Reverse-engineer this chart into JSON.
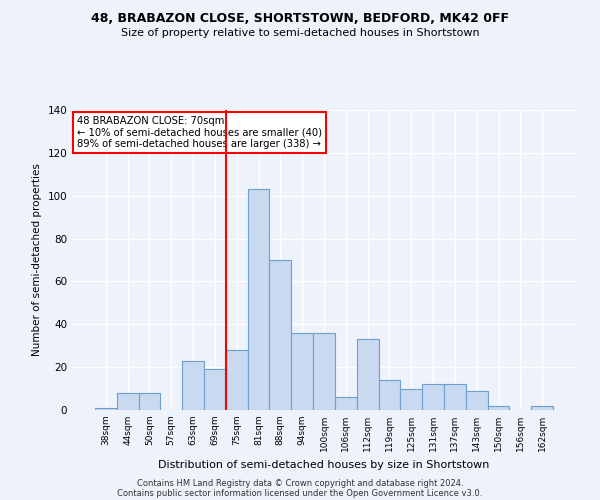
{
  "title": "48, BRABAZON CLOSE, SHORTSTOWN, BEDFORD, MK42 0FF",
  "subtitle": "Size of property relative to semi-detached houses in Shortstown",
  "xlabel": "Distribution of semi-detached houses by size in Shortstown",
  "ylabel": "Number of semi-detached properties",
  "bar_labels": [
    "38sqm",
    "44sqm",
    "50sqm",
    "57sqm",
    "63sqm",
    "69sqm",
    "75sqm",
    "81sqm",
    "88sqm",
    "94sqm",
    "100sqm",
    "106sqm",
    "112sqm",
    "119sqm",
    "125sqm",
    "131sqm",
    "137sqm",
    "143sqm",
    "150sqm",
    "156sqm",
    "162sqm"
  ],
  "bar_values": [
    1,
    8,
    8,
    0,
    23,
    19,
    28,
    103,
    70,
    36,
    36,
    6,
    33,
    14,
    10,
    12,
    12,
    9,
    2,
    0,
    2
  ],
  "bar_color": "#c9d9ef",
  "bar_edge_color": "#6ca0d0",
  "vline_x": 5.5,
  "vline_color": "red",
  "annotation_lines": [
    "48 BRABAZON CLOSE: 70sqm",
    "← 10% of semi-detached houses are smaller (40)",
    "89% of semi-detached houses are larger (338) →"
  ],
  "annotation_box_color": "white",
  "annotation_box_edge_color": "red",
  "ylim": [
    0,
    140
  ],
  "yticks": [
    0,
    20,
    40,
    60,
    80,
    100,
    120,
    140
  ],
  "footer_lines": [
    "Contains HM Land Registry data © Crown copyright and database right 2024.",
    "Contains public sector information licensed under the Open Government Licence v3.0."
  ],
  "background_color": "#eef2fb",
  "grid_color": "white"
}
